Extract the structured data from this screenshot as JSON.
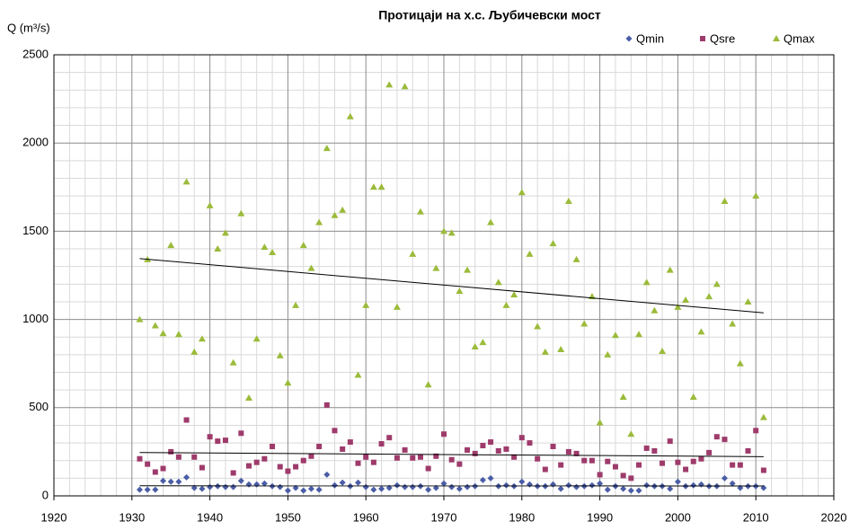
{
  "chart_data": {
    "type": "scatter",
    "title": "Протицаји на х.с. Љубичевски мост",
    "y_label": "Q (m³/s)",
    "x": [
      1931,
      1932,
      1933,
      1934,
      1935,
      1936,
      1937,
      1938,
      1939,
      1940,
      1941,
      1942,
      1943,
      1944,
      1945,
      1946,
      1947,
      1948,
      1949,
      1950,
      1951,
      1952,
      1953,
      1954,
      1955,
      1956,
      1957,
      1958,
      1959,
      1960,
      1961,
      1962,
      1963,
      1964,
      1965,
      1966,
      1967,
      1968,
      1969,
      1970,
      1971,
      1972,
      1973,
      1974,
      1975,
      1976,
      1977,
      1978,
      1979,
      1980,
      1981,
      1982,
      1983,
      1984,
      1985,
      1986,
      1987,
      1988,
      1989,
      1990,
      1991,
      1992,
      1993,
      1994,
      1995,
      1996,
      1997,
      1998,
      1999,
      2000,
      2001,
      2002,
      2003,
      2004,
      2005,
      2006,
      2007,
      2008,
      2009,
      2010,
      2011
    ],
    "series": [
      {
        "name": "Qmin",
        "color": "#4a5da6",
        "marker": "diamond",
        "values": [
          35,
          35,
          35,
          85,
          80,
          80,
          105,
          45,
          40,
          50,
          55,
          50,
          50,
          85,
          65,
          65,
          70,
          55,
          50,
          30,
          45,
          30,
          40,
          35,
          120,
          60,
          75,
          55,
          75,
          50,
          35,
          40,
          45,
          60,
          50,
          50,
          55,
          35,
          45,
          70,
          50,
          40,
          50,
          55,
          90,
          100,
          55,
          60,
          55,
          80,
          65,
          55,
          55,
          65,
          40,
          60,
          50,
          55,
          60,
          70,
          35,
          55,
          40,
          30,
          30,
          60,
          55,
          55,
          40,
          80,
          55,
          60,
          65,
          55,
          55,
          100,
          70,
          45,
          55,
          55,
          45
        ]
      },
      {
        "name": "Qsre",
        "color": "#9e3b6b",
        "marker": "square",
        "values": [
          210,
          180,
          135,
          155,
          250,
          220,
          430,
          220,
          160,
          335,
          310,
          315,
          130,
          355,
          170,
          190,
          210,
          280,
          165,
          140,
          165,
          200,
          225,
          280,
          515,
          370,
          265,
          305,
          185,
          220,
          190,
          295,
          330,
          215,
          260,
          215,
          220,
          155,
          225,
          350,
          205,
          180,
          260,
          240,
          285,
          305,
          255,
          265,
          220,
          330,
          300,
          210,
          150,
          280,
          175,
          250,
          240,
          200,
          200,
          120,
          195,
          165,
          115,
          100,
          175,
          270,
          255,
          185,
          310,
          190,
          150,
          195,
          210,
          245,
          335,
          320,
          175,
          175,
          255,
          370,
          145
        ]
      },
      {
        "name": "Qmax",
        "color": "#9bbb3a",
        "marker": "triangle",
        "values": [
          1000,
          1340,
          965,
          920,
          1420,
          915,
          1780,
          815,
          890,
          1645,
          1400,
          1490,
          755,
          1600,
          555,
          890,
          1410,
          1380,
          795,
          640,
          1080,
          1420,
          1290,
          1550,
          1970,
          1590,
          1620,
          2150,
          685,
          1080,
          1750,
          1750,
          2330,
          1070,
          2320,
          1370,
          1610,
          630,
          1290,
          1500,
          1490,
          1160,
          1280,
          845,
          870,
          1550,
          1210,
          1080,
          1140,
          1720,
          1370,
          960,
          815,
          1430,
          830,
          1670,
          1340,
          975,
          1130,
          415,
          800,
          910,
          560,
          350,
          915,
          1210,
          1050,
          820,
          1280,
          1070,
          1110,
          560,
          930,
          1130,
          1200,
          1670,
          975,
          750,
          1100,
          1700,
          445
        ]
      }
    ],
    "xlim": [
      1920,
      2020
    ],
    "xticks": [
      1920,
      1930,
      1940,
      1950,
      1960,
      1970,
      1980,
      1990,
      2000,
      2010,
      2020
    ],
    "ylim": [
      0,
      2500
    ],
    "yticks": [
      0,
      500,
      1000,
      1500,
      2000,
      2500
    ],
    "grid": true,
    "minor_grid": true,
    "trendline": true,
    "legend": "top-right"
  }
}
